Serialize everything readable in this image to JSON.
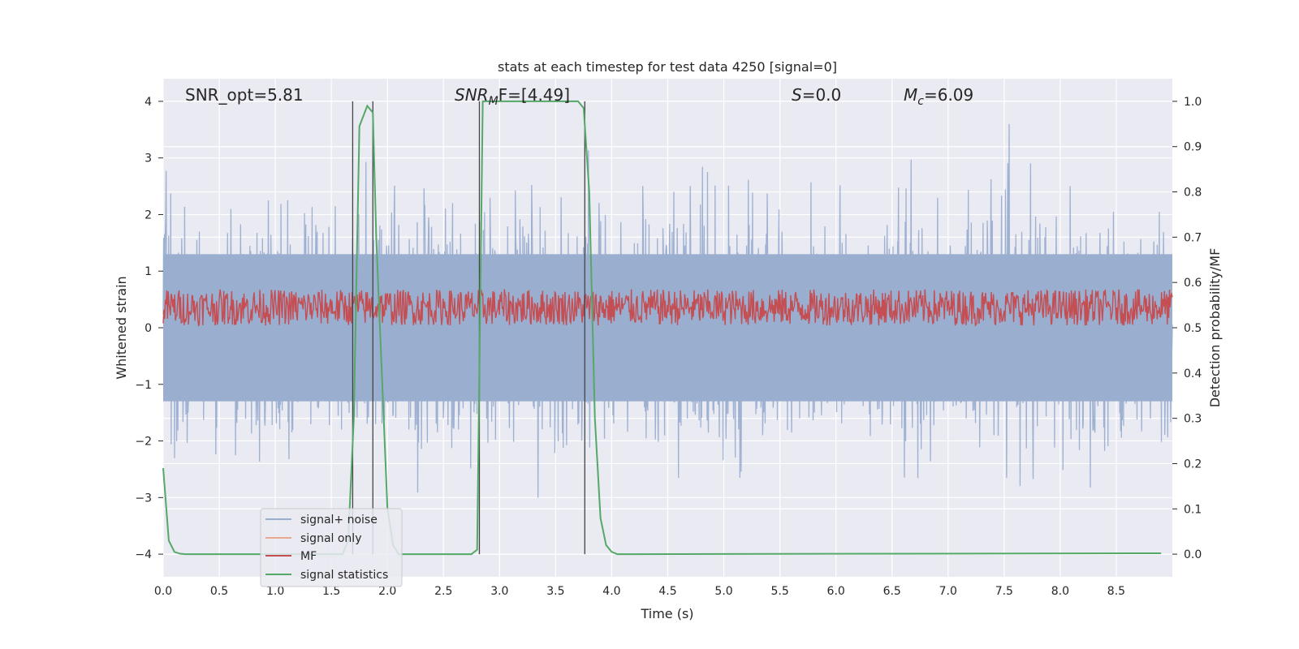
{
  "chart_data": {
    "type": "line",
    "title": "stats at each timestep for test data 4250 [signal=0]",
    "xlabel": "Time (s)",
    "ylabel_left": "Whitened strain",
    "ylabel_right": "Detection probability/MF",
    "xlim": [
      0.0,
      9.0
    ],
    "ylim_left": [
      -4.4,
      4.4
    ],
    "ylim_right": [
      -0.05,
      1.05
    ],
    "x_ticks": [
      0.0,
      0.5,
      1.0,
      1.5,
      2.0,
      2.5,
      3.0,
      3.5,
      4.0,
      4.5,
      5.0,
      5.5,
      6.0,
      6.5,
      7.0,
      7.5,
      8.0,
      8.5
    ],
    "x_tick_labels": [
      "0.0",
      "0.5",
      "1.0",
      "1.5",
      "2.0",
      "2.5",
      "3.0",
      "3.5",
      "4.0",
      "4.5",
      "5.0",
      "5.5",
      "6.0",
      "6.5",
      "7.0",
      "7.5",
      "8.0",
      "8.5"
    ],
    "y_left_ticks": [
      4,
      3,
      2,
      1,
      0,
      -1,
      -2,
      -3,
      -4
    ],
    "y_left_tick_labels": [
      "4",
      "3",
      "2",
      "1",
      "0",
      "−1",
      "−2",
      "−3",
      "−4"
    ],
    "y_right_ticks": [
      1.0,
      0.9,
      0.8,
      0.7,
      0.6,
      0.5,
      0.4,
      0.3,
      0.2,
      0.1,
      0.0
    ],
    "y_right_tick_labels": [
      "1.0",
      "0.9",
      "0.8",
      "0.7",
      "0.6",
      "0.5",
      "0.4",
      "0.3",
      "0.2",
      "0.1",
      "0.0"
    ],
    "grid": true,
    "legend_placement": "lower-left",
    "annotations": {
      "snr_opt": "SNR_opt=5.81",
      "snr_mf_base": "SNR",
      "snr_mf_sub": "M",
      "snr_mf_rest": "F=[4.49]",
      "s_label": "S",
      "s_value": "=0.0",
      "mc_label": "M",
      "mc_sub": "c",
      "mc_value": "=6.09"
    },
    "vertical_lines_x": [
      1.69,
      1.87,
      2.82,
      3.76
    ],
    "series": [
      {
        "name": "signal+ noise",
        "color": "#9aaed0",
        "axis": "left",
        "description_values": "noise band, approx amplitude envelope ±2.5 with spikes to ±3.6"
      },
      {
        "name": "signal only",
        "color": "#e9a98f",
        "axis": "left"
      },
      {
        "name": "MF",
        "color": "#c44e52",
        "axis": "right",
        "range": [
          0.505,
          0.585
        ]
      },
      {
        "name": "signal statistics",
        "color": "#55a868",
        "axis": "right",
        "x": [
          0.0,
          0.05,
          0.1,
          0.15,
          0.2,
          0.3,
          1.6,
          1.65,
          1.7,
          1.75,
          1.82,
          1.87,
          1.9,
          1.95,
          2.0,
          2.05,
          2.1,
          2.3,
          2.75,
          2.8,
          2.85,
          3.0,
          3.3,
          3.6,
          3.7,
          3.75,
          3.8,
          3.85,
          3.9,
          3.95,
          4.0,
          4.05,
          4.2,
          8.9
        ],
        "y": [
          0.19,
          0.03,
          0.005,
          0.001,
          0.0,
          0.0,
          0.0,
          0.03,
          0.3,
          0.945,
          0.99,
          0.975,
          0.7,
          0.4,
          0.1,
          0.02,
          0.0,
          0.0,
          0.0,
          0.01,
          1.0,
          1.0,
          1.0,
          1.0,
          1.0,
          0.985,
          0.8,
          0.3,
          0.08,
          0.02,
          0.005,
          0.0,
          0.0,
          0.002
        ]
      }
    ]
  },
  "legend": {
    "items": [
      {
        "label": "signal+ noise",
        "color": "#9aaed0"
      },
      {
        "label": "signal only",
        "color": "#e9a98f"
      },
      {
        "label": "MF",
        "color": "#c44e52"
      },
      {
        "label": "signal statistics",
        "color": "#55a868"
      }
    ]
  }
}
